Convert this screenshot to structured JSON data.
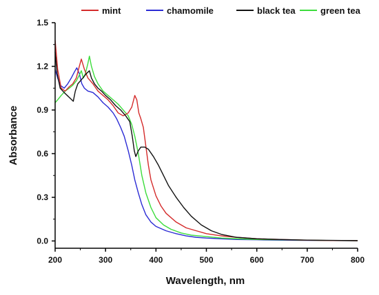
{
  "chart_data": {
    "type": "line",
    "title": "",
    "xlabel": "Wavelength, nm",
    "ylabel": "Absorbance",
    "xlim": [
      200,
      800
    ],
    "ylim": [
      -0.05,
      1.5
    ],
    "x_ticks": [
      "200",
      "300",
      "400",
      "500",
      "600",
      "700",
      "800"
    ],
    "y_ticks": [
      "0.0",
      "0.3",
      "0.6",
      "0.9",
      "1.2",
      "1.5"
    ],
    "grid": false,
    "legend_position": "top",
    "series": [
      {
        "name": "mint",
        "color": "#d42a2a",
        "points": [
          [
            200,
            1.38
          ],
          [
            205,
            1.18
          ],
          [
            212,
            1.05
          ],
          [
            220,
            1.03
          ],
          [
            228,
            1.06
          ],
          [
            235,
            1.08
          ],
          [
            242,
            1.12
          ],
          [
            248,
            1.2
          ],
          [
            252,
            1.25
          ],
          [
            258,
            1.18
          ],
          [
            265,
            1.12
          ],
          [
            275,
            1.08
          ],
          [
            285,
            1.03
          ],
          [
            295,
            1.0
          ],
          [
            305,
            0.97
          ],
          [
            315,
            0.93
          ],
          [
            325,
            0.88
          ],
          [
            335,
            0.86
          ],
          [
            345,
            0.88
          ],
          [
            352,
            0.92
          ],
          [
            358,
            1.0
          ],
          [
            362,
            0.97
          ],
          [
            366,
            0.88
          ],
          [
            370,
            0.84
          ],
          [
            375,
            0.78
          ],
          [
            380,
            0.65
          ],
          [
            385,
            0.52
          ],
          [
            390,
            0.42
          ],
          [
            400,
            0.31
          ],
          [
            410,
            0.24
          ],
          [
            420,
            0.19
          ],
          [
            440,
            0.13
          ],
          [
            460,
            0.09
          ],
          [
            480,
            0.07
          ],
          [
            500,
            0.05
          ],
          [
            530,
            0.035
          ],
          [
            560,
            0.025
          ],
          [
            600,
            0.015
          ],
          [
            650,
            0.01
          ],
          [
            700,
            0.005
          ],
          [
            750,
            0.003
          ],
          [
            800,
            0.002
          ]
        ]
      },
      {
        "name": "chamomile",
        "color": "#2a2ad4",
        "points": [
          [
            200,
            1.18
          ],
          [
            205,
            1.12
          ],
          [
            210,
            1.07
          ],
          [
            218,
            1.05
          ],
          [
            225,
            1.08
          ],
          [
            232,
            1.12
          ],
          [
            238,
            1.16
          ],
          [
            243,
            1.19
          ],
          [
            248,
            1.15
          ],
          [
            253,
            1.08
          ],
          [
            258,
            1.05
          ],
          [
            265,
            1.03
          ],
          [
            275,
            1.02
          ],
          [
            285,
            0.99
          ],
          [
            295,
            0.95
          ],
          [
            305,
            0.92
          ],
          [
            315,
            0.88
          ],
          [
            322,
            0.84
          ],
          [
            330,
            0.78
          ],
          [
            337,
            0.72
          ],
          [
            345,
            0.62
          ],
          [
            352,
            0.52
          ],
          [
            358,
            0.42
          ],
          [
            365,
            0.33
          ],
          [
            372,
            0.25
          ],
          [
            380,
            0.18
          ],
          [
            390,
            0.13
          ],
          [
            400,
            0.1
          ],
          [
            420,
            0.07
          ],
          [
            440,
            0.05
          ],
          [
            460,
            0.035
          ],
          [
            480,
            0.025
          ],
          [
            500,
            0.02
          ],
          [
            530,
            0.015
          ],
          [
            560,
            0.01
          ],
          [
            600,
            0.008
          ],
          [
            650,
            0.005
          ],
          [
            700,
            0.004
          ],
          [
            750,
            0.003
          ],
          [
            800,
            0.002
          ]
        ]
      },
      {
        "name": "black tea",
        "color": "#111111",
        "points": [
          [
            200,
            1.3
          ],
          [
            204,
            1.15
          ],
          [
            210,
            1.05
          ],
          [
            218,
            1.02
          ],
          [
            224,
            1.0
          ],
          [
            230,
            0.98
          ],
          [
            236,
            0.96
          ],
          [
            240,
            1.03
          ],
          [
            245,
            1.08
          ],
          [
            250,
            1.1
          ],
          [
            255,
            1.12
          ],
          [
            262,
            1.15
          ],
          [
            268,
            1.17
          ],
          [
            272,
            1.12
          ],
          [
            278,
            1.08
          ],
          [
            285,
            1.05
          ],
          [
            292,
            1.03
          ],
          [
            300,
            1.0
          ],
          [
            310,
            0.97
          ],
          [
            320,
            0.93
          ],
          [
            330,
            0.9
          ],
          [
            340,
            0.86
          ],
          [
            348,
            0.82
          ],
          [
            353,
            0.72
          ],
          [
            357,
            0.62
          ],
          [
            360,
            0.58
          ],
          [
            365,
            0.62
          ],
          [
            370,
            0.645
          ],
          [
            378,
            0.645
          ],
          [
            385,
            0.63
          ],
          [
            395,
            0.58
          ],
          [
            405,
            0.52
          ],
          [
            415,
            0.45
          ],
          [
            425,
            0.38
          ],
          [
            440,
            0.3
          ],
          [
            455,
            0.23
          ],
          [
            470,
            0.17
          ],
          [
            490,
            0.11
          ],
          [
            510,
            0.07
          ],
          [
            530,
            0.045
          ],
          [
            560,
            0.025
          ],
          [
            600,
            0.015
          ],
          [
            650,
            0.01
          ],
          [
            700,
            0.006
          ],
          [
            750,
            0.004
          ],
          [
            800,
            0.002
          ]
        ]
      },
      {
        "name": "green tea",
        "color": "#3bdc3b",
        "points": [
          [
            200,
            0.95
          ],
          [
            205,
            0.97
          ],
          [
            212,
            1.0
          ],
          [
            220,
            1.03
          ],
          [
            228,
            1.05
          ],
          [
            235,
            1.07
          ],
          [
            242,
            1.1
          ],
          [
            248,
            1.14
          ],
          [
            252,
            1.17
          ],
          [
            256,
            1.12
          ],
          [
            260,
            1.15
          ],
          [
            265,
            1.22
          ],
          [
            268,
            1.27
          ],
          [
            272,
            1.2
          ],
          [
            278,
            1.13
          ],
          [
            285,
            1.08
          ],
          [
            295,
            1.03
          ],
          [
            305,
            1.0
          ],
          [
            315,
            0.97
          ],
          [
            325,
            0.94
          ],
          [
            335,
            0.9
          ],
          [
            345,
            0.86
          ],
          [
            352,
            0.8
          ],
          [
            358,
            0.72
          ],
          [
            365,
            0.6
          ],
          [
            372,
            0.45
          ],
          [
            380,
            0.33
          ],
          [
            390,
            0.23
          ],
          [
            400,
            0.16
          ],
          [
            415,
            0.11
          ],
          [
            430,
            0.08
          ],
          [
            450,
            0.055
          ],
          [
            470,
            0.04
          ],
          [
            500,
            0.03
          ],
          [
            530,
            0.02
          ],
          [
            560,
            0.015
          ],
          [
            600,
            0.01
          ],
          [
            650,
            0.008
          ],
          [
            700,
            0.005
          ],
          [
            750,
            0.003
          ],
          [
            800,
            0.002
          ]
        ]
      }
    ]
  }
}
